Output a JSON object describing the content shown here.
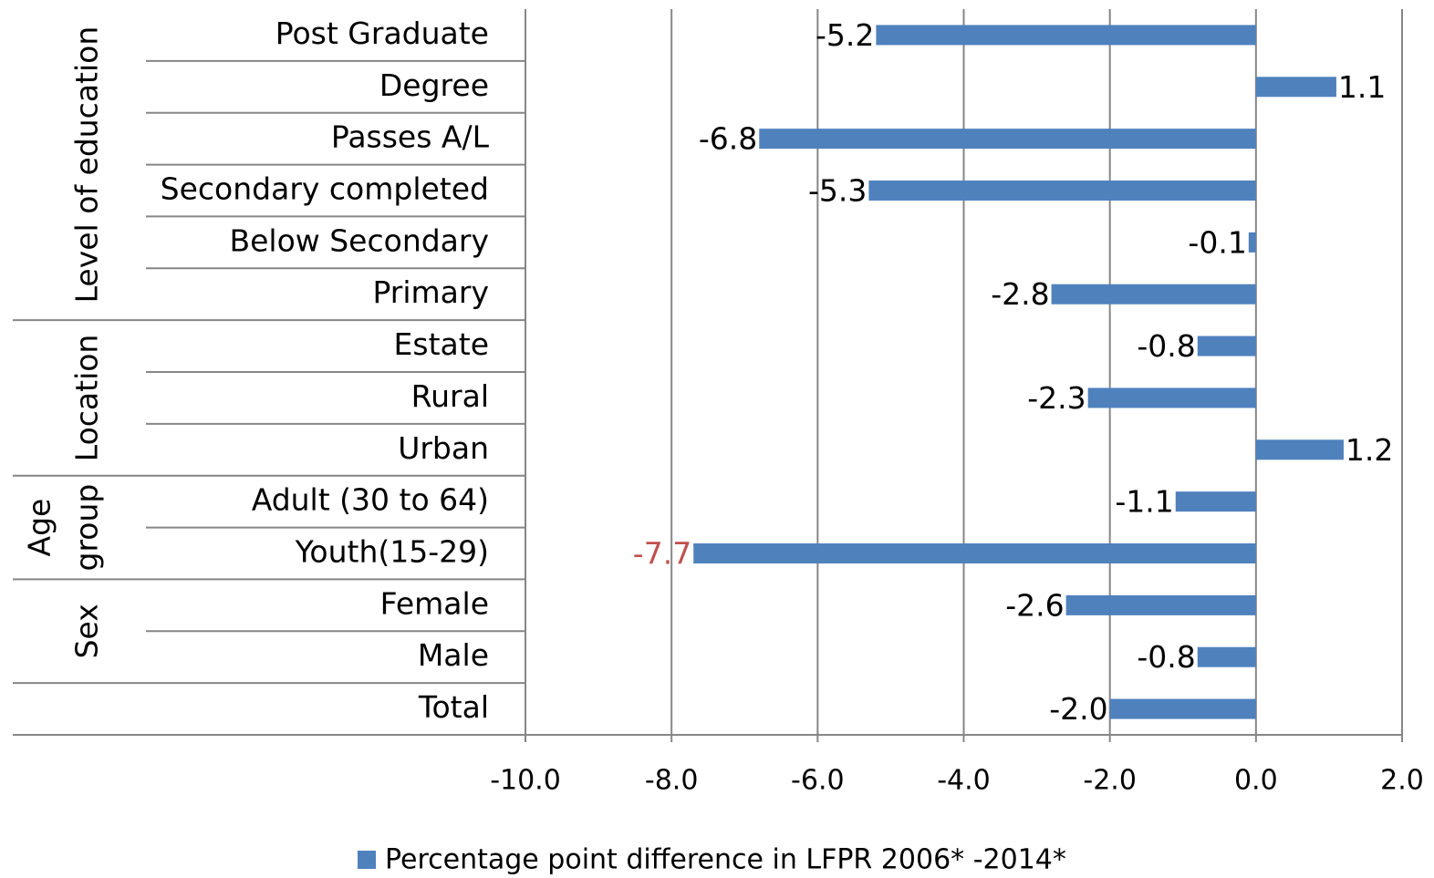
{
  "chart_data": {
    "type": "bar",
    "orientation": "horizontal",
    "categories": [
      "Post Graduate",
      "Degree",
      "Passes A/L",
      "Secondary completed",
      "Below Secondary",
      "Primary",
      "Estate",
      "Rural",
      "Urban",
      "Adult (30 to 64)",
      "Youth(15-29)",
      "Female",
      "Male",
      "Total"
    ],
    "category_groups": [
      {
        "label": [
          "Level of education"
        ],
        "size": 6
      },
      {
        "label": [
          "Location"
        ],
        "size": 3
      },
      {
        "label": [
          "Age",
          "group"
        ],
        "size": 2
      },
      {
        "label": [
          "Sex"
        ],
        "size": 2
      }
    ],
    "series": [
      {
        "name": "Percentage point difference in LFPR 2006* -2014*",
        "color": "#4f81bd",
        "values": [
          -5.2,
          1.1,
          -6.8,
          -5.3,
          -0.1,
          -2.8,
          -0.8,
          -2.3,
          1.2,
          -1.1,
          -7.7,
          -2.6,
          -0.8,
          -2.0
        ],
        "value_labels": [
          "-5.2",
          "1.1",
          "-6.8",
          "-5.3",
          "-0.1",
          "-2.8",
          "-0.8",
          "-2.3",
          "1.2",
          "-1.1",
          "-7.7",
          "-2.6",
          "-0.8",
          "-2.0"
        ],
        "value_label_colors": [
          "#000000",
          "#000000",
          "#000000",
          "#000000",
          "#000000",
          "#000000",
          "#000000",
          "#000000",
          "#000000",
          "#000000",
          "#c0504d",
          "#000000",
          "#000000",
          "#000000"
        ]
      }
    ],
    "xlim": [
      -10,
      2
    ],
    "xticks": [
      {
        "value": -10,
        "label": "-10.0"
      },
      {
        "value": -8,
        "label": "-8.0"
      },
      {
        "value": -6,
        "label": "-6.0"
      },
      {
        "value": -4,
        "label": "-4.0"
      },
      {
        "value": -2,
        "label": "-2.0"
      },
      {
        "value": 0,
        "label": "0.0"
      },
      {
        "value": 2,
        "label": "2.0"
      }
    ],
    "grid": true,
    "legend": "bottom"
  }
}
